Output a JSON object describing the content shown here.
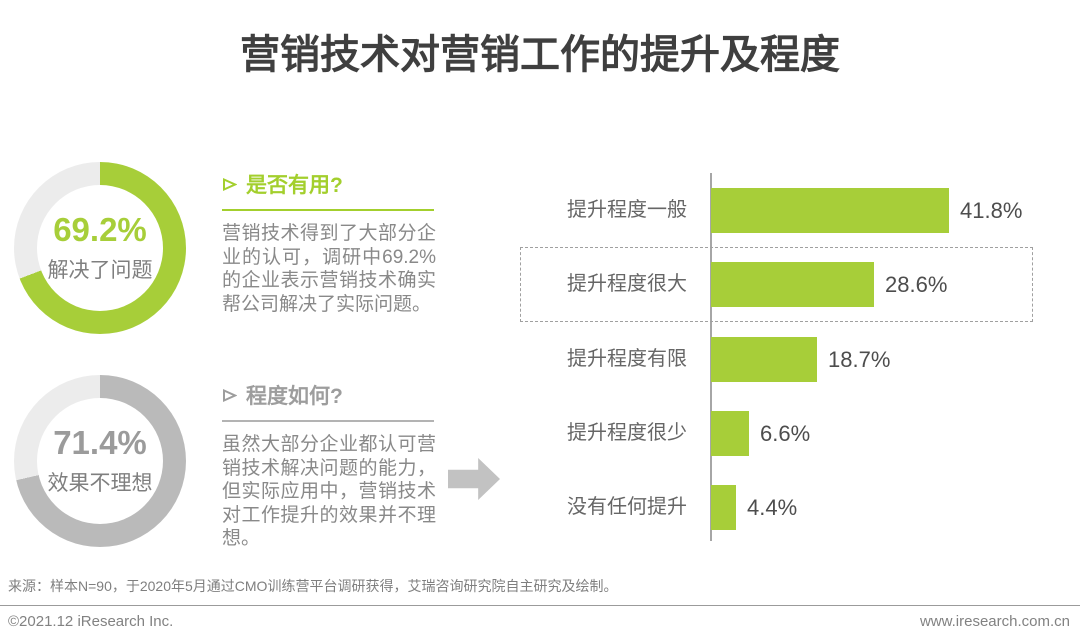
{
  "page": {
    "title": "营销技术对营销工作的提升及程度"
  },
  "colors": {
    "green": "#a7ce39",
    "ring_rest": "#ececec",
    "gray_fill": "#bababa",
    "title_text": "#3f3f3f",
    "body_text": "#898989"
  },
  "donuts": [
    {
      "value": 69.2,
      "percent": "69.2%",
      "label": "解决了问题",
      "fill_color": "#a7ce39",
      "rest_color": "#ececec",
      "percent_color": "#a7ce39"
    },
    {
      "value": 71.4,
      "percent": "71.4%",
      "label": "效果不理想",
      "fill_color": "#bababa",
      "rest_color": "#ececec",
      "percent_color": "#9b9b9b"
    }
  ],
  "sections": [
    {
      "header": "是否有用?",
      "body": "营销技术得到了大部分企业的认可，调研中69.2%的企业表示营销技术确实帮公司解决了实际问题。",
      "header_color": "#a3cf2d",
      "line_color": "#a3cf2d"
    },
    {
      "header": "程度如何?",
      "body": "虽然大部分企业都认可营销技术解决问题的能力，但实际应用中，营销技术对工作提升的效果并不理想。",
      "header_color": "#9d9d9d",
      "line_color": "#b3b3b3"
    }
  ],
  "chart_data": {
    "type": "bar",
    "orientation": "horizontal",
    "title": "",
    "categories": [
      "提升程度一般",
      "提升程度很大",
      "提升程度有限",
      "提升程度很少",
      "没有任何提升"
    ],
    "values": [
      41.8,
      28.6,
      18.7,
      6.6,
      4.4
    ],
    "value_labels": [
      "41.8%",
      "28.6%",
      "18.7%",
      "6.6%",
      "4.4%"
    ],
    "highlighted_category": "提升程度很大",
    "bar_color": "#a7ce39",
    "xlim": [
      0,
      45
    ],
    "grid": false,
    "legend": "none"
  },
  "footer": {
    "source": "来源：样本N=90，于2020年5月通过CMO训练营平台调研获得，艾瑞咨询研究院自主研究及绘制。",
    "copyright": "©2021.12 iResearch Inc.",
    "website": "www.iresearch.com.cn"
  }
}
